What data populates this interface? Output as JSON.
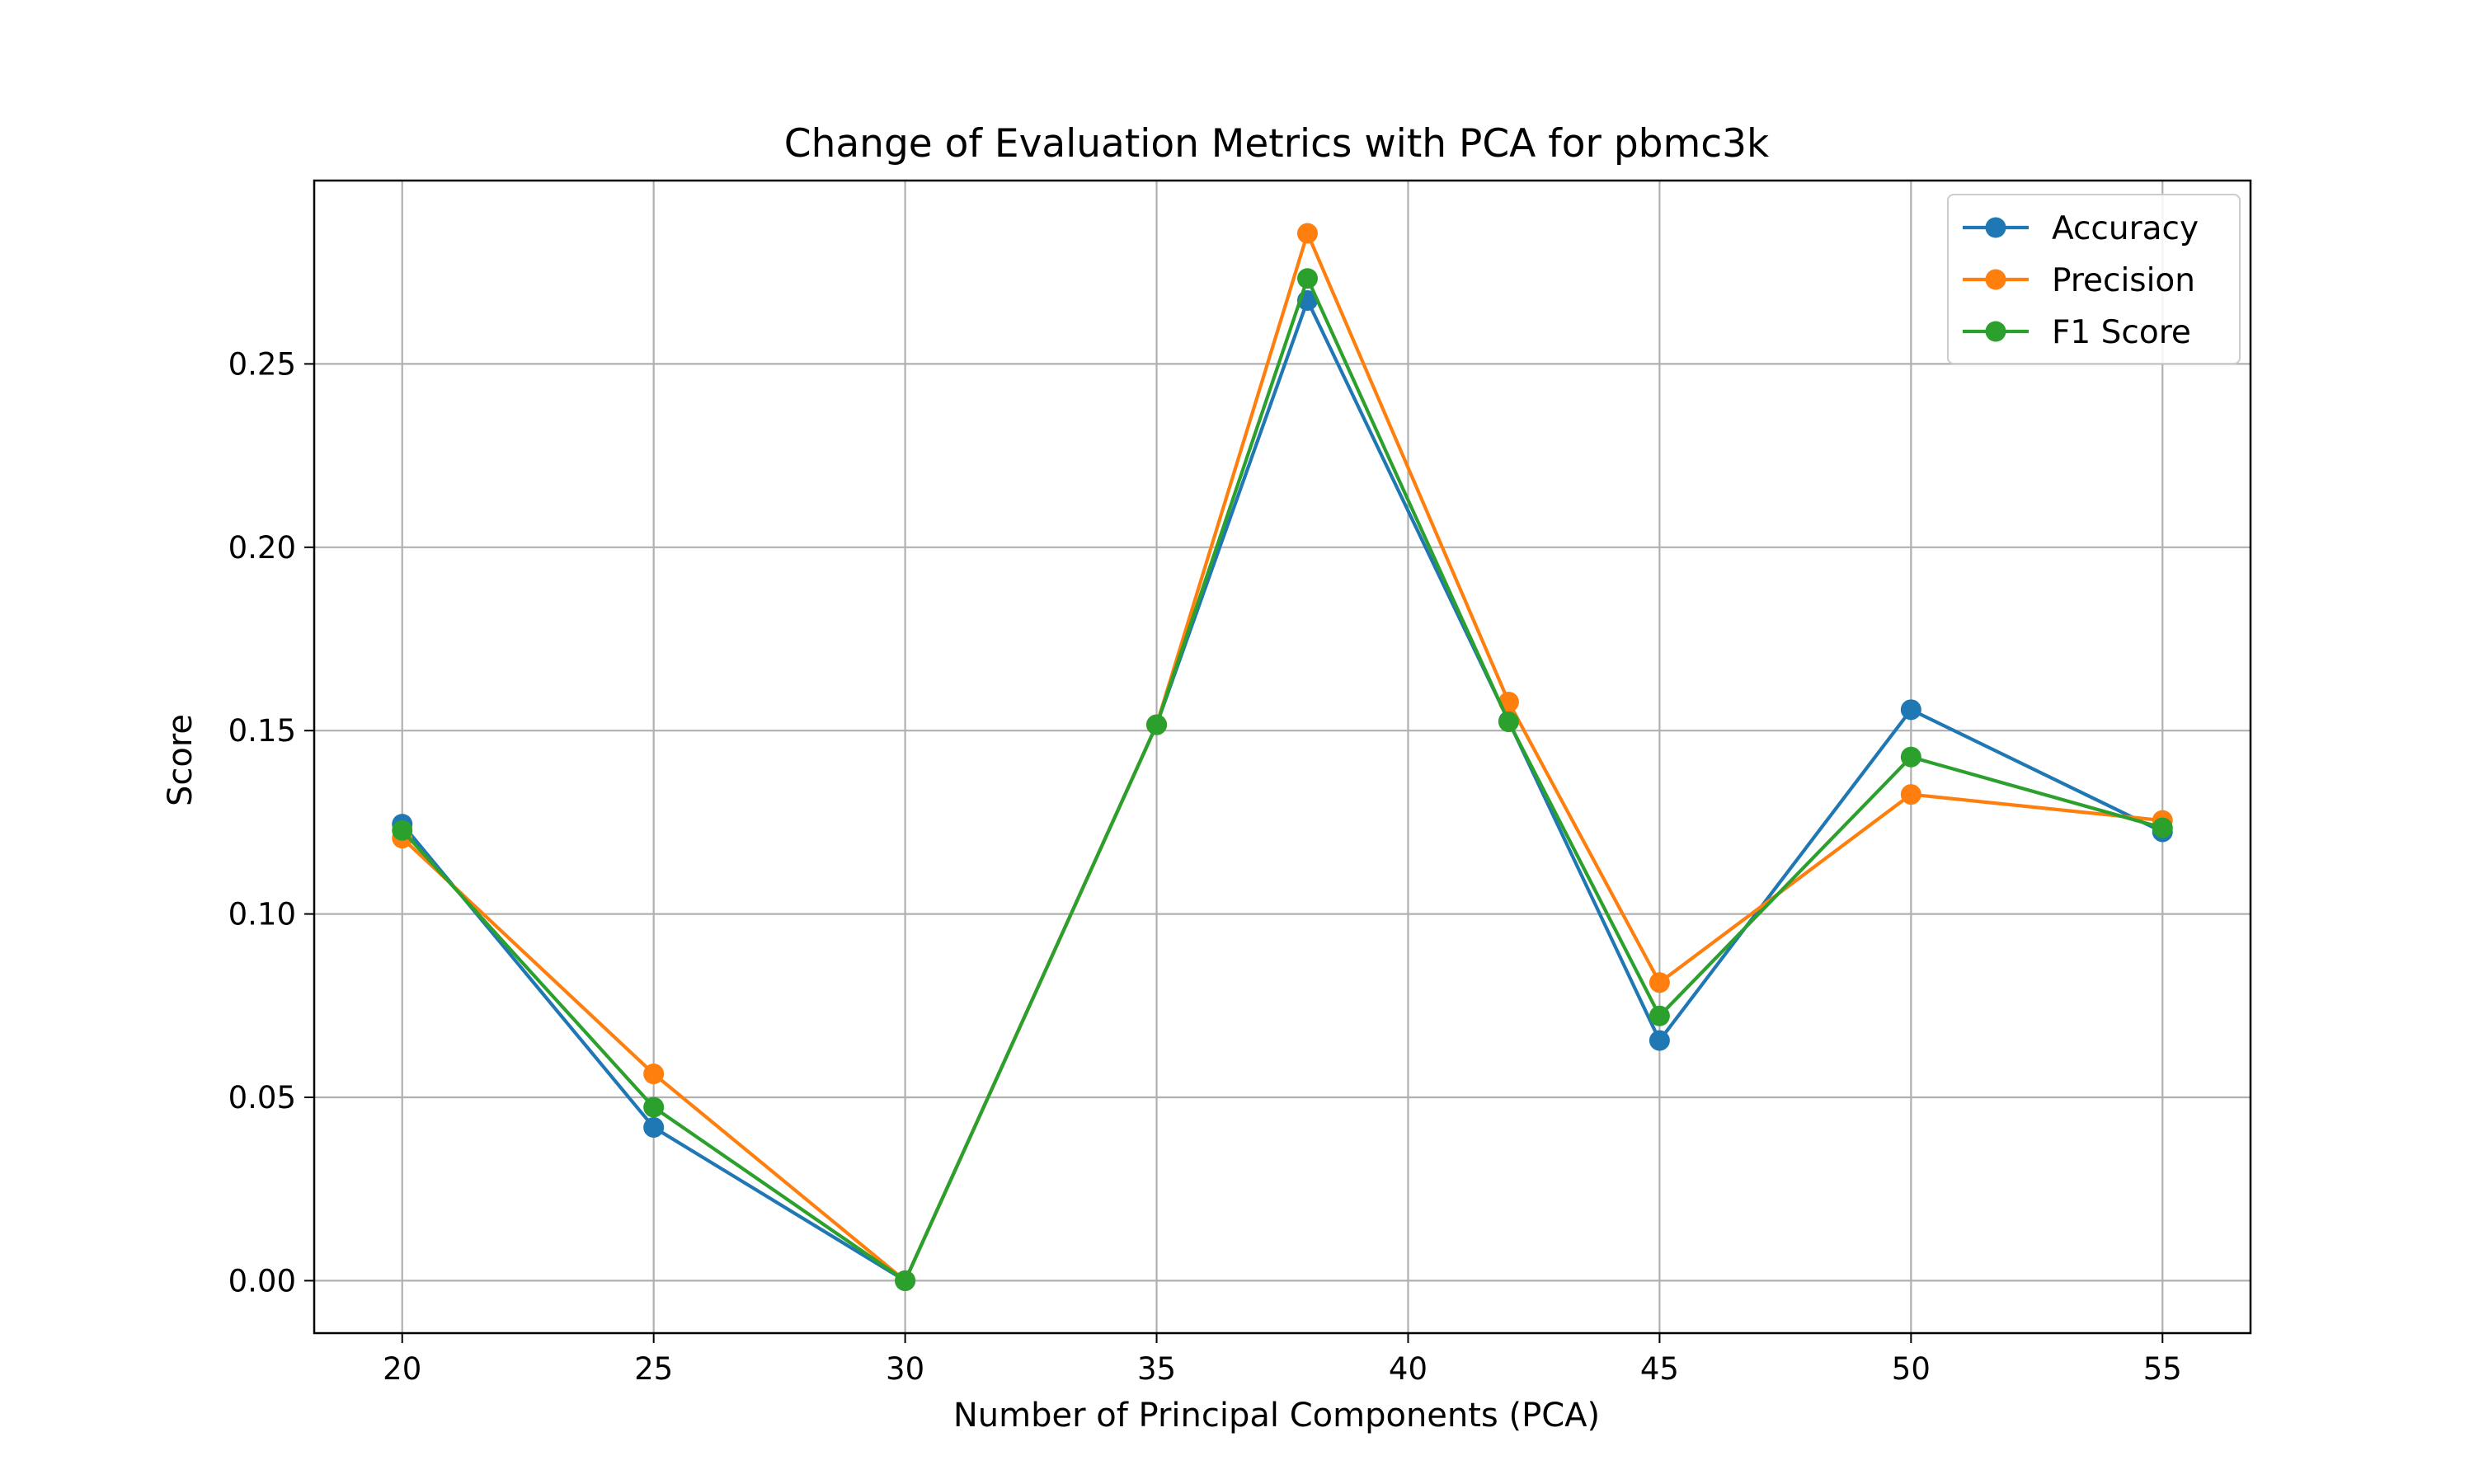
{
  "chart_data": {
    "type": "line",
    "title": "Change of Evaluation Metrics with PCA for pbmc3k",
    "xlabel": "Number of Principal Components (PCA)",
    "ylabel": "Score",
    "x": [
      20,
      25,
      30,
      35,
      38,
      42,
      45,
      50,
      55
    ],
    "xticks": [
      20,
      25,
      30,
      35,
      40,
      45,
      50,
      55
    ],
    "yticks": [
      0.0,
      0.05,
      0.1,
      0.15,
      0.2,
      0.25
    ],
    "ytick_labels": [
      "0.00",
      "0.05",
      "0.10",
      "0.15",
      "0.20",
      "0.25"
    ],
    "xlim": [
      18.25,
      56.75
    ],
    "ylim": [
      -0.0143,
      0.3
    ],
    "grid": true,
    "legend_position": "top-right",
    "series": [
      {
        "name": "Accuracy",
        "color": "#1f77b4",
        "values": [
          0.1245,
          0.0418,
          0.0,
          0.1516,
          0.2673,
          0.1526,
          0.0655,
          0.1557,
          0.1224
        ]
      },
      {
        "name": "Precision",
        "color": "#ff7f0e",
        "values": [
          0.1207,
          0.0564,
          0.0,
          0.1516,
          0.2856,
          0.1578,
          0.0813,
          0.1326,
          0.1255
        ]
      },
      {
        "name": "F1 Score",
        "color": "#2ca02c",
        "values": [
          0.1228,
          0.0473,
          0.0,
          0.1516,
          0.2733,
          0.1524,
          0.0722,
          0.1428,
          0.1235
        ]
      }
    ]
  }
}
